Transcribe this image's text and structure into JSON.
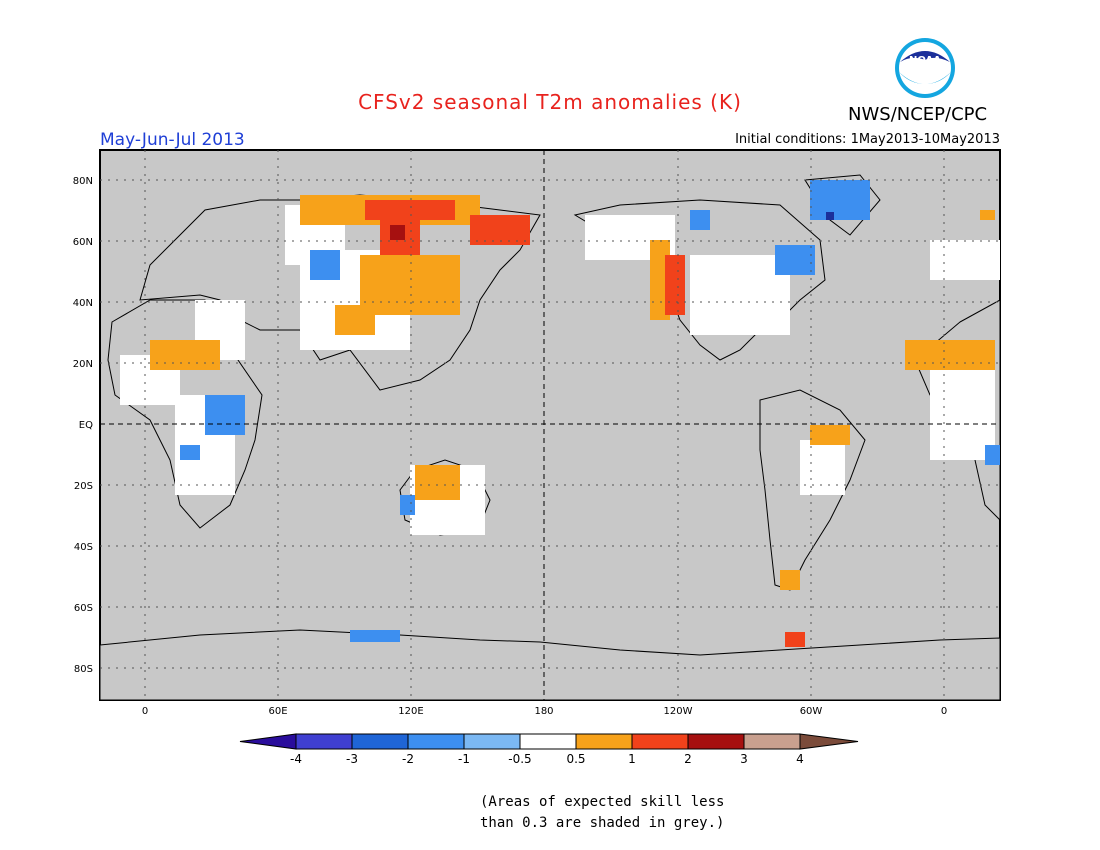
{
  "title": "CFSv2 seasonal T2m anomalies (K)",
  "agency": "NWS/NCEP/CPC",
  "logo_text": "NOAA",
  "period": "May-Jun-Jul 2013",
  "initial_conditions": "Initial conditions: 1May2013-10May2013",
  "lat_ticks": [
    "80N",
    "60N",
    "40N",
    "20N",
    "EQ",
    "20S",
    "40S",
    "60S",
    "80S"
  ],
  "lon_ticks": [
    "0",
    "60E",
    "120E",
    "180",
    "120W",
    "60W",
    "0"
  ],
  "colorbar": {
    "labels": [
      "-4",
      "-3",
      "-2",
      "-1",
      "-0.5",
      "0.5",
      "1",
      "2",
      "3",
      "4"
    ],
    "colors": [
      "#2a0d9c",
      "#3f3fd1",
      "#1f65d6",
      "#3d8ff0",
      "#7bb8f3",
      "#ffffff",
      "#f7a21a",
      "#f1421b",
      "#a61010",
      "#c9a08f",
      "#7b4b3a"
    ]
  },
  "colors": {
    "ocean_grey": "#c8c8c8",
    "title_red": "#e8231e",
    "period_blue": "#1f3fd6"
  },
  "note_line1": "(Areas of expected skill less",
  "note_line2": "than 0.3 are shaded in grey.)"
}
